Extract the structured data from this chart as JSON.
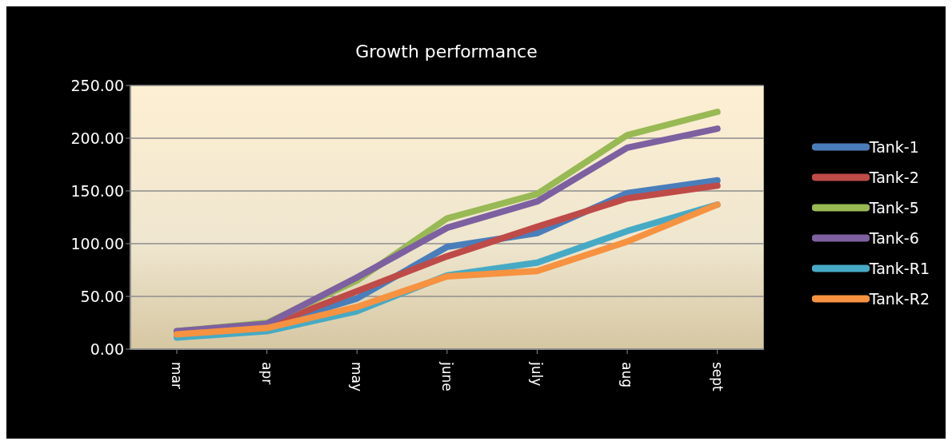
{
  "chart_data": {
    "type": "line",
    "title": "Growth performance",
    "categories": [
      "mar",
      "apr",
      "may",
      "june",
      "july",
      "aug",
      "sept"
    ],
    "series": [
      {
        "name": "Tank-1",
        "color": "#4a7ebb",
        "values": [
          15,
          22,
          48,
          97,
          110,
          148,
          160
        ]
      },
      {
        "name": "Tank-2",
        "color": "#be4b48",
        "values": [
          15,
          22,
          55,
          88,
          116,
          143,
          155
        ]
      },
      {
        "name": "Tank-5",
        "color": "#98b954",
        "values": [
          17,
          25,
          65,
          124,
          147,
          203,
          225
        ]
      },
      {
        "name": "Tank-6",
        "color": "#7d60a0",
        "values": [
          17,
          24,
          68,
          115,
          140,
          191,
          209
        ]
      },
      {
        "name": "Tank-R1",
        "color": "#46aac5",
        "values": [
          11,
          17,
          36,
          70,
          82,
          112,
          137
        ]
      },
      {
        "name": "Tank-R2",
        "color": "#f69240",
        "values": [
          14,
          20,
          40,
          69,
          74,
          102,
          137
        ]
      }
    ],
    "ylim": [
      0,
      250
    ],
    "yticks": [
      {
        "value": 0,
        "label": "0.00"
      },
      {
        "value": 50,
        "label": "50.00"
      },
      {
        "value": 100,
        "label": "100.00"
      },
      {
        "value": 150,
        "label": "150.00"
      },
      {
        "value": 200,
        "label": "200.00"
      },
      {
        "value": 250,
        "label": "250.00"
      }
    ],
    "grid": "y",
    "legend": "right",
    "marker": "none",
    "line_style": "solid"
  }
}
